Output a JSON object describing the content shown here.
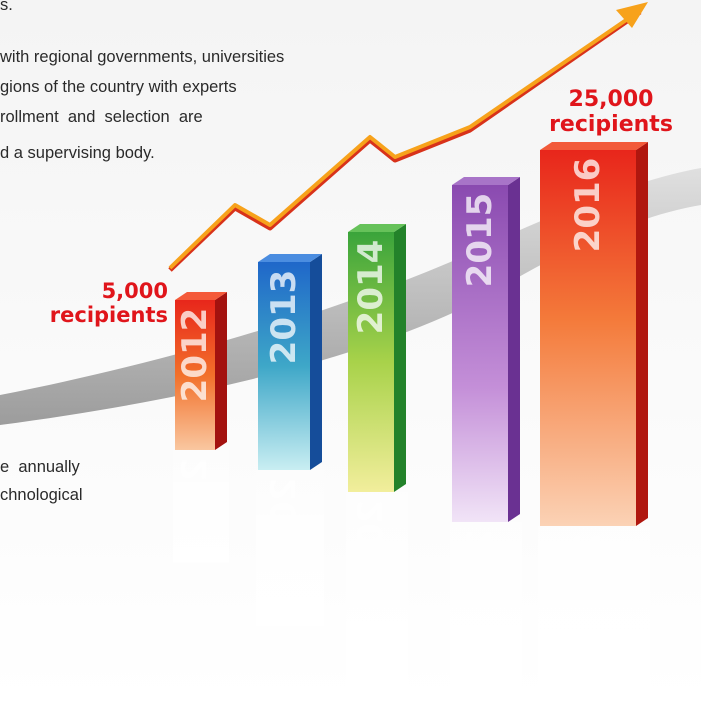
{
  "paragraph_top": {
    "lines": [
      "s.",
      "with regional governments, universities",
      "gions of the country with experts",
      "rollment  and  selection  are",
      "d a supervising body."
    ]
  },
  "paragraph_bottom": {
    "lines": [
      "e  annually",
      "chnological"
    ]
  },
  "callouts": [
    {
      "amount": "5,000",
      "unit": "recipients"
    },
    {
      "amount": "25,000",
      "unit": "recipients"
    }
  ],
  "bars": [
    {
      "label": "2012"
    },
    {
      "label": "2013"
    },
    {
      "label": "2014"
    },
    {
      "label": "2015"
    },
    {
      "label": "2016"
    }
  ]
}
